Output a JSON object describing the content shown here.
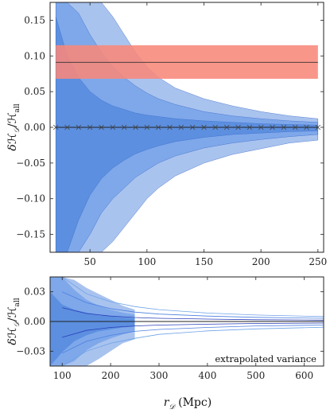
{
  "chart_data": [
    {
      "type": "area",
      "panel": "top",
      "ylabel": "δH_D/H_all",
      "xlim": [
        15,
        255
      ],
      "ylim": [
        -0.175,
        0.175
      ],
      "xticks": [
        50,
        100,
        150,
        200,
        250
      ],
      "xtick_labels": [
        "50",
        "100",
        "150",
        "200",
        "250"
      ],
      "yticks": [
        0.15,
        0.1,
        0.05,
        0.0,
        -0.05,
        -0.1,
        -0.15
      ],
      "ytick_labels": [
        "0.15",
        "0.10",
        "0.05",
        "0.00",
        "−0.05",
        "−0.10",
        "−0.15"
      ],
      "grid": false,
      "colors": {
        "outer_band": "#a9c3ef",
        "middle_band": "#7ea8ea",
        "inner_band": "#5c8fe0",
        "outline": "#3d6bc7",
        "reference_band": "#f8877a",
        "reference_line": "#333333",
        "mean_line": "#222222"
      },
      "reference_band": {
        "center": 0.091,
        "low": 0.068,
        "high": 0.115,
        "x_range": [
          20,
          250
        ]
      },
      "series": [
        {
          "role": "outer-band",
          "x": [
            20,
            30,
            40,
            50,
            60,
            70,
            80,
            90,
            100,
            110,
            125,
            150,
            175,
            200,
            225,
            250
          ],
          "upper": [
            0.175,
            0.175,
            0.175,
            0.175,
            0.175,
            0.155,
            0.13,
            0.105,
            0.085,
            0.07,
            0.055,
            0.04,
            0.03,
            0.022,
            0.016,
            0.012
          ],
          "lower": [
            -0.175,
            -0.175,
            -0.175,
            -0.175,
            -0.175,
            -0.16,
            -0.14,
            -0.12,
            -0.1,
            -0.085,
            -0.068,
            -0.05,
            -0.038,
            -0.03,
            -0.022,
            -0.018
          ]
        },
        {
          "role": "middle-band",
          "x": [
            20,
            30,
            40,
            50,
            60,
            70,
            80,
            90,
            100,
            110,
            125,
            150,
            175,
            200,
            225,
            250
          ],
          "upper": [
            0.175,
            0.175,
            0.16,
            0.13,
            0.105,
            0.085,
            0.07,
            0.058,
            0.048,
            0.04,
            0.032,
            0.022,
            0.016,
            0.012,
            0.009,
            0.007
          ],
          "lower": [
            -0.175,
            -0.175,
            -0.175,
            -0.15,
            -0.12,
            -0.1,
            -0.085,
            -0.07,
            -0.06,
            -0.05,
            -0.04,
            -0.029,
            -0.022,
            -0.017,
            -0.013,
            -0.01
          ]
        },
        {
          "role": "inner-band",
          "x": [
            20,
            30,
            40,
            50,
            60,
            70,
            80,
            90,
            100,
            110,
            125,
            150,
            175,
            200,
            225,
            250
          ],
          "upper": [
            0.155,
            0.1,
            0.07,
            0.05,
            0.038,
            0.03,
            0.025,
            0.02,
            0.017,
            0.015,
            0.012,
            0.009,
            0.007,
            0.005,
            0.004,
            0.003
          ],
          "lower": [
            -0.175,
            -0.175,
            -0.13,
            -0.095,
            -0.072,
            -0.057,
            -0.046,
            -0.037,
            -0.031,
            -0.026,
            -0.02,
            -0.014,
            -0.01,
            -0.008,
            -0.006,
            -0.005
          ]
        },
        {
          "role": "mean",
          "x": [
            20,
            30,
            40,
            50,
            60,
            70,
            80,
            90,
            100,
            110,
            120,
            130,
            140,
            150,
            160,
            170,
            180,
            190,
            200,
            210,
            220,
            230,
            240,
            250
          ],
          "y": [
            0,
            0,
            0,
            0,
            0,
            0,
            0,
            0,
            0,
            0,
            0,
            0,
            0,
            0,
            0,
            0,
            0,
            0,
            0,
            0,
            0,
            0,
            0,
            0
          ],
          "marker": "x"
        }
      ]
    },
    {
      "type": "area",
      "panel": "bottom",
      "ylabel": "δH_D/H_all",
      "xlabel": "r_D (Mpc)",
      "xlim": [
        75,
        640
      ],
      "ylim": [
        -0.045,
        0.045
      ],
      "xticks": [
        100,
        200,
        300,
        400,
        500,
        600
      ],
      "xtick_labels": [
        "100",
        "200",
        "300",
        "400",
        "500",
        "600"
      ],
      "yticks": [
        0.03,
        0.0,
        -0.03
      ],
      "ytick_labels": [
        "0.03",
        "0.00",
        "−0.03"
      ],
      "grid": false,
      "annotation": "extrapolated variance",
      "colors": {
        "outer_band": "#a9c3ef",
        "middle_band": "#7ea8ea",
        "inner_band": "#5c8fe0",
        "extrapolated_outer": "#6fa3e8",
        "extrapolated_middle": "#4d7fe0",
        "extrapolated_inner": "#2a3fb8",
        "mean_line": "#222222"
      },
      "series": [
        {
          "role": "outer-band",
          "x": [
            75,
            100,
            125,
            150,
            175,
            200,
            225,
            250
          ],
          "upper": [
            0.045,
            0.045,
            0.042,
            0.034,
            0.028,
            0.022,
            0.016,
            0.012
          ],
          "lower": [
            -0.045,
            -0.045,
            -0.045,
            -0.045,
            -0.038,
            -0.03,
            -0.022,
            -0.018
          ]
        },
        {
          "role": "middle-band",
          "x": [
            75,
            100,
            125,
            150,
            175,
            200,
            225,
            250
          ],
          "upper": [
            0.045,
            0.045,
            0.032,
            0.022,
            0.016,
            0.012,
            0.009,
            0.007
          ],
          "lower": [
            -0.045,
            -0.045,
            -0.04,
            -0.029,
            -0.022,
            -0.017,
            -0.013,
            -0.01
          ]
        },
        {
          "role": "inner-band",
          "x": [
            75,
            100,
            125,
            150,
            175,
            200,
            225,
            250
          ],
          "upper": [
            0.03,
            0.017,
            0.012,
            0.009,
            0.007,
            0.005,
            0.004,
            0.003
          ],
          "lower": [
            -0.045,
            -0.031,
            -0.02,
            -0.014,
            -0.01,
            -0.008,
            -0.006,
            -0.005
          ]
        },
        {
          "role": "extrapolated-outer",
          "x": [
            100,
            150,
            200,
            250,
            300,
            400,
            500,
            640
          ],
          "upper": [
            0.045,
            0.028,
            0.02,
            0.015,
            0.012,
            0.0085,
            0.0065,
            0.005
          ],
          "lower": [
            -0.045,
            -0.03,
            -0.022,
            -0.017,
            -0.013,
            -0.0095,
            -0.0075,
            -0.0058
          ]
        },
        {
          "role": "extrapolated-middle",
          "x": [
            100,
            150,
            200,
            250,
            300,
            400,
            500,
            640
          ],
          "upper": [
            0.03,
            0.019,
            0.013,
            0.0095,
            0.0075,
            0.0055,
            0.0042,
            0.0032
          ],
          "lower": [
            -0.032,
            -0.02,
            -0.014,
            -0.01,
            -0.008,
            -0.006,
            -0.0045,
            -0.0036
          ]
        },
        {
          "role": "extrapolated-inner",
          "x": [
            100,
            150,
            200,
            250,
            300,
            400,
            500,
            640
          ],
          "upper": [
            0.014,
            0.008,
            0.0055,
            0.004,
            0.0032,
            0.0024,
            0.0018,
            0.0014
          ],
          "lower": [
            -0.016,
            -0.009,
            -0.006,
            -0.0045,
            -0.0036,
            -0.0027,
            -0.002,
            -0.0016
          ]
        },
        {
          "role": "mean",
          "x": [
            75,
            100,
            150,
            200,
            250,
            300,
            400,
            500,
            640
          ],
          "y": [
            0,
            0,
            0,
            0,
            0,
            0,
            0,
            0,
            0
          ]
        }
      ]
    }
  ]
}
